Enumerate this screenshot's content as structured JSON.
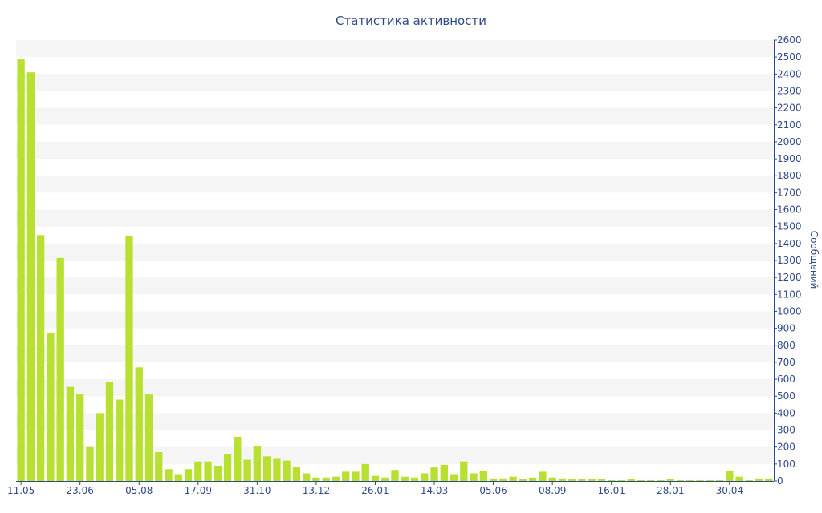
{
  "colors": {
    "bar": "#b8e030",
    "band": "#f5f5f5",
    "axis": "#2f4a8a",
    "text": "#2f4a8a",
    "background": "#ffffff"
  },
  "chart_data": {
    "type": "bar",
    "title": "Статистика активности",
    "xlabel": "",
    "ylabel": "Сообщений",
    "y_axis_side": "right",
    "ylim": [
      0,
      2600
    ],
    "ytick_step": 100,
    "grid": "alternating horizontal bands",
    "legend": "none",
    "x_tick_labels": [
      {
        "label": "11.05",
        "index": 0
      },
      {
        "label": "23.06",
        "index": 6
      },
      {
        "label": "05.08",
        "index": 12
      },
      {
        "label": "17.09",
        "index": 18
      },
      {
        "label": "31.10",
        "index": 24
      },
      {
        "label": "13.12",
        "index": 30
      },
      {
        "label": "26.01",
        "index": 36
      },
      {
        "label": "14.03",
        "index": 42
      },
      {
        "label": "05.06",
        "index": 48
      },
      {
        "label": "08.09",
        "index": 54
      },
      {
        "label": "16.01",
        "index": 60
      },
      {
        "label": "28.01",
        "index": 66
      },
      {
        "label": "30.04",
        "index": 72
      }
    ],
    "values": [
      2490,
      2410,
      1450,
      870,
      1315,
      555,
      510,
      200,
      400,
      585,
      480,
      1445,
      670,
      510,
      170,
      70,
      40,
      70,
      115,
      115,
      90,
      160,
      260,
      125,
      205,
      145,
      130,
      120,
      85,
      45,
      20,
      20,
      25,
      55,
      55,
      100,
      30,
      20,
      65,
      25,
      20,
      45,
      80,
      95,
      40,
      115,
      45,
      60,
      15,
      15,
      25,
      10,
      20,
      55,
      20,
      15,
      10,
      10,
      10,
      10,
      5,
      5,
      10,
      5,
      5,
      5,
      10,
      5,
      5,
      5,
      5,
      5,
      60,
      25,
      5,
      15,
      15
    ]
  }
}
